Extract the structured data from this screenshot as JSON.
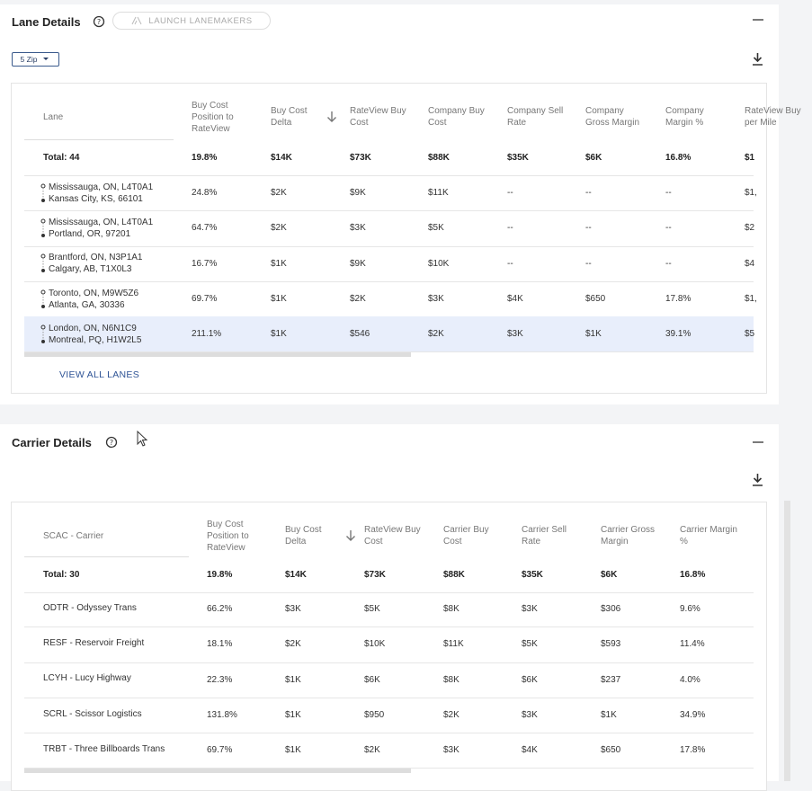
{
  "lane_details": {
    "title": "Lane Details",
    "launch_button": "LAUNCH LANEMAKERS",
    "zip_dropdown": "5 Zip",
    "table": {
      "headers": [
        "Lane",
        "Buy Cost Position to RateView",
        "Buy Cost Delta",
        "RateView Buy Cost",
        "Company Buy Cost",
        "Company Sell Rate",
        "Company Gross Margin",
        "Company Margin %",
        "RateView Buy per Mile"
      ],
      "total": [
        "Total: 44",
        "19.8%",
        "$14K",
        "$73K",
        "$88K",
        "$35K",
        "$6K",
        "16.8%",
        "$1"
      ],
      "rows": [
        {
          "origin": "Mississauga, ON, L4T0A1",
          "destination": "Kansas City, KS, 66101",
          "cells": [
            "24.8%",
            "$2K",
            "$9K",
            "$11K",
            "--",
            "--",
            "--",
            "$1,"
          ]
        },
        {
          "origin": "Mississauga, ON, L4T0A1",
          "destination": "Portland, OR, 97201",
          "cells": [
            "64.7%",
            "$2K",
            "$3K",
            "$5K",
            "--",
            "--",
            "--",
            "$2"
          ]
        },
        {
          "origin": "Brantford, ON, N3P1A1",
          "destination": "Calgary, AB, T1X0L3",
          "cells": [
            "16.7%",
            "$1K",
            "$9K",
            "$10K",
            "--",
            "--",
            "--",
            "$4"
          ]
        },
        {
          "origin": "Toronto, ON, M9W5Z6",
          "destination": "Atlanta, GA, 30336",
          "cells": [
            "69.7%",
            "$1K",
            "$2K",
            "$3K",
            "$4K",
            "$650",
            "17.8%",
            "$1,"
          ]
        },
        {
          "origin": "London, ON, N6N1C9",
          "destination": "Montreal, PQ, H1W2L5",
          "cells": [
            "211.1%",
            "$1K",
            "$546",
            "$2K",
            "$3K",
            "$1K",
            "39.1%",
            "$5"
          ]
        }
      ]
    },
    "view_all": "VIEW ALL LANES"
  },
  "carrier_details": {
    "title": "Carrier Details",
    "table": {
      "headers": [
        "SCAC - Carrier",
        "Buy Cost Position to RateView",
        "Buy Cost Delta",
        "RateView Buy Cost",
        "Carrier Buy Cost",
        "Carrier Sell Rate",
        "Carrier Gross Margin",
        "Carrier Margin %"
      ],
      "total": [
        "Total: 30",
        "19.8%",
        "$14K",
        "$73K",
        "$88K",
        "$35K",
        "$6K",
        "16.8%"
      ],
      "rows": [
        [
          "ODTR - Odyssey Trans",
          "66.2%",
          "$3K",
          "$5K",
          "$8K",
          "$3K",
          "$306",
          "9.6%"
        ],
        [
          "RESF - Reservoir Freight",
          "18.1%",
          "$2K",
          "$10K",
          "$11K",
          "$5K",
          "$593",
          "11.4%"
        ],
        [
          "LCYH - Lucy Highway",
          "22.3%",
          "$1K",
          "$6K",
          "$8K",
          "$6K",
          "$237",
          "4.0%"
        ],
        [
          "SCRL - Scissor Logistics",
          "131.8%",
          "$1K",
          "$950",
          "$2K",
          "$3K",
          "$1K",
          "34.9%"
        ],
        [
          "TRBT - Three Billboards Trans",
          "69.7%",
          "$1K",
          "$2K",
          "$3K",
          "$4K",
          "$650",
          "17.8%"
        ]
      ]
    }
  }
}
